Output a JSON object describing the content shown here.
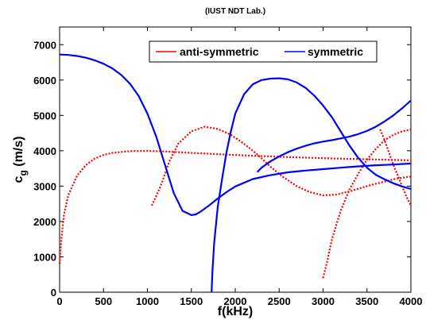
{
  "chart_data": {
    "type": "line",
    "title": "(IUST NDT Lab.)",
    "xlabel": "f(kHz)",
    "ylabel_main": "c",
    "ylabel_sub": "g",
    "ylabel_rest": " (m/s)",
    "xlim": [
      0,
      4000
    ],
    "ylim": [
      0,
      7500
    ],
    "xticks": [
      0,
      500,
      1000,
      1500,
      2000,
      2500,
      3000,
      3500,
      4000
    ],
    "yticks": [
      0,
      1000,
      2000,
      3000,
      4000,
      5000,
      6000,
      7000
    ],
    "grid": false,
    "legend_position": "top-right",
    "legend": [
      {
        "label": "anti-symmetric",
        "color": "#ff0000",
        "style": "dotted"
      },
      {
        "label": "symmetric",
        "color": "#0000ff",
        "style": "solid"
      }
    ],
    "series": [
      {
        "group": "anti-symmetric",
        "color": "#ff0000",
        "style": "dotted",
        "x": [
          0,
          20,
          50,
          100,
          200,
          300,
          400,
          500,
          600,
          800,
          1000,
          1200,
          1500,
          2000,
          2500,
          3000,
          3500,
          4000
        ],
        "y": [
          800,
          1500,
          2200,
          2750,
          3300,
          3600,
          3780,
          3880,
          3940,
          3990,
          4000,
          3980,
          3940,
          3880,
          3830,
          3790,
          3760,
          3730
        ]
      },
      {
        "group": "anti-symmetric",
        "color": "#ff0000",
        "style": "dotted",
        "x": [
          1050,
          1150,
          1250,
          1350,
          1500,
          1650,
          1800,
          1950,
          2100,
          2250,
          2400,
          2550,
          2700,
          2850,
          3000,
          3150,
          3300,
          3500,
          3700,
          3850,
          4000
        ],
        "y": [
          2450,
          3000,
          3700,
          4200,
          4550,
          4680,
          4620,
          4450,
          4200,
          3900,
          3550,
          3250,
          3000,
          2830,
          2740,
          2760,
          2850,
          3000,
          3130,
          3220,
          3270
        ]
      },
      {
        "group": "anti-symmetric",
        "color": "#ff0000",
        "style": "dotted",
        "x": [
          3000,
          3050,
          3100,
          3200,
          3300,
          3400,
          3500,
          3600,
          3700,
          3800,
          3900,
          4000
        ],
        "y": [
          400,
          900,
          1500,
          2300,
          2900,
          3350,
          3750,
          4050,
          4300,
          4450,
          4550,
          4600
        ]
      },
      {
        "group": "anti-symmetric",
        "color": "#ff0000",
        "style": "dotted",
        "x": [
          3650,
          3700,
          3750,
          3800,
          3850,
          3900,
          3950,
          4000
        ],
        "y": [
          4600,
          4300,
          3950,
          3600,
          3300,
          3000,
          2700,
          2450
        ]
      },
      {
        "group": "symmetric",
        "color": "#0000ff",
        "style": "solid",
        "x": [
          0,
          100,
          200,
          300,
          400,
          500,
          600,
          700,
          800,
          900,
          1000,
          1100,
          1200,
          1300,
          1400,
          1500,
          1550,
          1600,
          1700,
          1800,
          1900,
          2000,
          2200,
          2400,
          2600,
          2800,
          3000,
          3200,
          3400,
          3600,
          3800,
          4000
        ],
        "y": [
          6720,
          6710,
          6680,
          6630,
          6560,
          6460,
          6330,
          6150,
          5900,
          5550,
          5050,
          4400,
          3600,
          2800,
          2300,
          2180,
          2200,
          2270,
          2450,
          2650,
          2830,
          2990,
          3200,
          3310,
          3390,
          3440,
          3480,
          3520,
          3560,
          3590,
          3610,
          3640
        ]
      },
      {
        "group": "symmetric",
        "color": "#0000ff",
        "style": "solid",
        "x": [
          1730,
          1740,
          1760,
          1800,
          1850,
          1900,
          1950,
          2000,
          2100,
          2200,
          2300,
          2400,
          2500,
          2600,
          2700,
          2800,
          2900,
          3000,
          3100,
          3200,
          3300,
          3400,
          3500,
          3600,
          3700,
          3800,
          3900,
          4000
        ],
        "y": [
          0,
          600,
          1400,
          2400,
          3200,
          3950,
          4550,
          5050,
          5600,
          5880,
          6000,
          6040,
          6050,
          6020,
          5930,
          5780,
          5560,
          5280,
          4950,
          4550,
          4150,
          3800,
          3520,
          3320,
          3190,
          3080,
          2990,
          2920
        ]
      },
      {
        "group": "symmetric",
        "color": "#0000ff",
        "style": "solid",
        "x": [
          2250,
          2300,
          2400,
          2500,
          2600,
          2700,
          2800,
          2900,
          3000,
          3100,
          3200,
          3300,
          3400,
          3500,
          3600,
          3700,
          3800,
          3900,
          4000
        ],
        "y": [
          3400,
          3520,
          3700,
          3840,
          3960,
          4060,
          4140,
          4210,
          4260,
          4300,
          4350,
          4400,
          4470,
          4560,
          4680,
          4830,
          5000,
          5200,
          5420
        ]
      }
    ]
  }
}
